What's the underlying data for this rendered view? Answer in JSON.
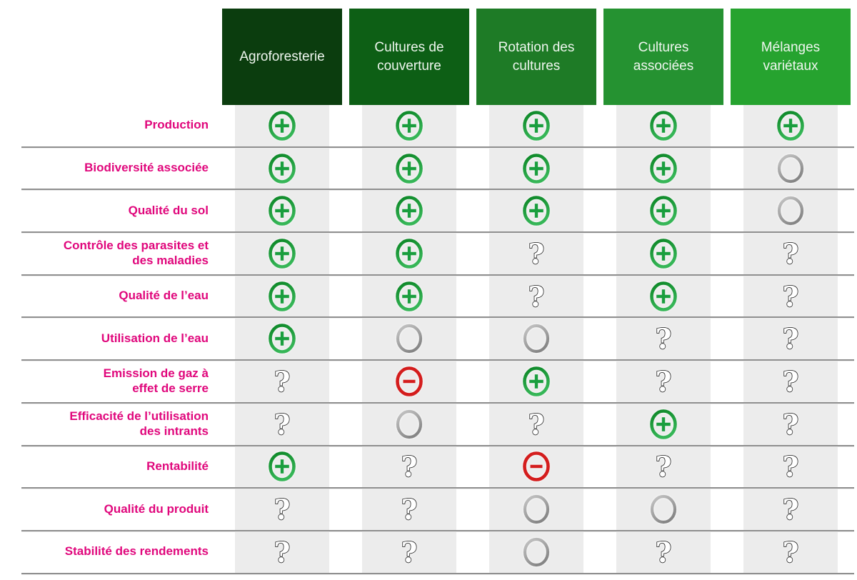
{
  "table": {
    "columns": [
      {
        "label": "Agroforesterie",
        "color": "#0b3d0e"
      },
      {
        "label": "Cultures de couverture",
        "color": "#0d5f15"
      },
      {
        "label": "Rotation des cultures",
        "color": "#1e7b26"
      },
      {
        "label": "Cultures associées",
        "color": "#259231"
      },
      {
        "label": "Mélanges variétaux",
        "color": "#26a32f"
      }
    ],
    "rows": [
      {
        "label": "Production",
        "cells": [
          "plus",
          "plus",
          "plus",
          "plus",
          "plus"
        ]
      },
      {
        "label": "Biodiversité associée",
        "cells": [
          "plus",
          "plus",
          "plus",
          "plus",
          "neutral"
        ]
      },
      {
        "label": "Qualité du sol",
        "cells": [
          "plus",
          "plus",
          "plus",
          "plus",
          "neutral"
        ]
      },
      {
        "label": "Contrôle des parasites et\ndes maladies",
        "cells": [
          "plus",
          "plus",
          "question",
          "plus",
          "question"
        ]
      },
      {
        "label": "Qualité de l’eau",
        "cells": [
          "plus",
          "plus",
          "question",
          "plus",
          "question"
        ]
      },
      {
        "label": "Utilisation de l’eau",
        "cells": [
          "plus",
          "neutral",
          "neutral",
          "question",
          "question"
        ]
      },
      {
        "label": "Emission de gaz à\neffet de serre",
        "cells": [
          "question",
          "minus",
          "plus",
          "question",
          "question"
        ]
      },
      {
        "label": "Efficacité de l’utilisation\ndes intrants",
        "cells": [
          "question",
          "neutral",
          "question",
          "plus",
          "question"
        ]
      },
      {
        "label": "Rentabilité",
        "cells": [
          "plus",
          "question",
          "minus",
          "question",
          "question"
        ]
      },
      {
        "label": "Qualité du produit",
        "cells": [
          "question",
          "question",
          "neutral",
          "neutral",
          "question"
        ]
      },
      {
        "label": "Stabilité des rendements",
        "cells": [
          "question",
          "question",
          "neutral",
          "question",
          "question"
        ]
      }
    ],
    "symbols": {
      "plus": {
        "icon": "plus-circle-icon",
        "ring_top": "#0c8626",
        "ring_bottom": "#36b657",
        "cross": "#1a9e3e"
      },
      "minus": {
        "icon": "minus-circle-icon",
        "color": "#d41d1d"
      },
      "neutral": {
        "icon": "empty-circle-icon",
        "ring_top": "#c6c6c6",
        "ring_bottom": "#868686"
      },
      "question": {
        "icon": "question-mark-icon",
        "glyph": "?",
        "fill": "#ffffff",
        "outline": "#2d2d2d"
      }
    },
    "theme": {
      "row_label_color": "#e0077c",
      "column_stripe_color": "#ececec",
      "separator_color": "#8f8f8f",
      "header_text_color": "#eff6ef",
      "background": "#ffffff"
    }
  },
  "chart_data": {
    "type": "table",
    "title": "",
    "columns": [
      "Agroforesterie",
      "Cultures de couverture",
      "Rotation des cultures",
      "Cultures associées",
      "Mélanges variétaux"
    ],
    "rows": [
      "Production",
      "Biodiversité associée",
      "Qualité du sol",
      "Contrôle des parasites et des maladies",
      "Qualité de l’eau",
      "Utilisation de l’eau",
      "Emission de gaz à effet de serre",
      "Efficacité de l’utilisation des intrants",
      "Rentabilité",
      "Qualité du produit",
      "Stabilité des rendements"
    ],
    "legend": {
      "plus": "cercle vert +",
      "minus": "cercle rouge −",
      "neutral": "cercle gris vide",
      "question": "point d’interrogation"
    },
    "values": [
      [
        "plus",
        "plus",
        "plus",
        "plus",
        "plus"
      ],
      [
        "plus",
        "plus",
        "plus",
        "plus",
        "neutral"
      ],
      [
        "plus",
        "plus",
        "plus",
        "plus",
        "neutral"
      ],
      [
        "plus",
        "plus",
        "question",
        "plus",
        "question"
      ],
      [
        "plus",
        "plus",
        "question",
        "plus",
        "question"
      ],
      [
        "plus",
        "neutral",
        "neutral",
        "question",
        "question"
      ],
      [
        "question",
        "minus",
        "plus",
        "question",
        "question"
      ],
      [
        "question",
        "neutral",
        "question",
        "plus",
        "question"
      ],
      [
        "plus",
        "question",
        "minus",
        "question",
        "question"
      ],
      [
        "question",
        "question",
        "neutral",
        "neutral",
        "question"
      ],
      [
        "question",
        "question",
        "neutral",
        "question",
        "question"
      ]
    ]
  }
}
